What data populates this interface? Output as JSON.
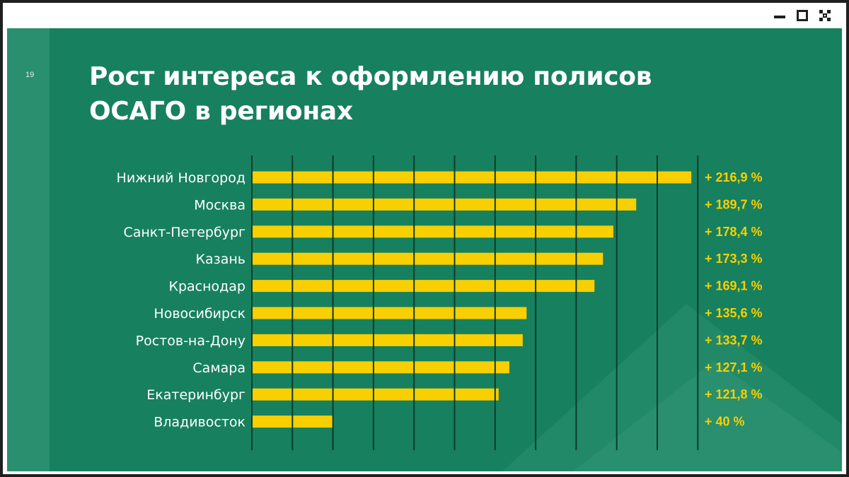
{
  "window": {
    "controls": [
      "minimize-icon",
      "maximize-icon",
      "close-icon"
    ]
  },
  "slide": {
    "page_number": "19",
    "title_line1": "Рост интереса к оформлению полисов",
    "title_line2": "ОСАГО в регионах"
  },
  "colors": {
    "background": "#17805f",
    "bar": "#f8cf00",
    "value_text": "#f8cf00",
    "gridline": "#0f3b2c"
  },
  "chart_data": {
    "type": "bar",
    "orientation": "horizontal",
    "title": "Рост интереса к оформлению полисов ОСАГО в регионах",
    "categories": [
      "Нижний Новгород",
      "Москва",
      "Санкт-Петербург",
      "Казань",
      "Краснодар",
      "Новосибирск",
      "Ростов-на-Дону",
      "Самара",
      "Екатеринбург",
      "Владивосток"
    ],
    "values": [
      216.9,
      189.7,
      178.4,
      173.3,
      169.1,
      135.6,
      133.7,
      127.1,
      121.8,
      40
    ],
    "value_labels": [
      "+ 216,9 %",
      "+ 189,7 %",
      "+ 178,4 %",
      "+ 173,3 %",
      "+ 169,1 %",
      "+ 135,6 %",
      "+ 133,7 %",
      "+ 127,1 %",
      "+ 121,8 %",
      "+ 40 %"
    ],
    "xlim": [
      0,
      220
    ],
    "xlabel": "",
    "ylabel": "",
    "grid": true,
    "legend": "none"
  }
}
